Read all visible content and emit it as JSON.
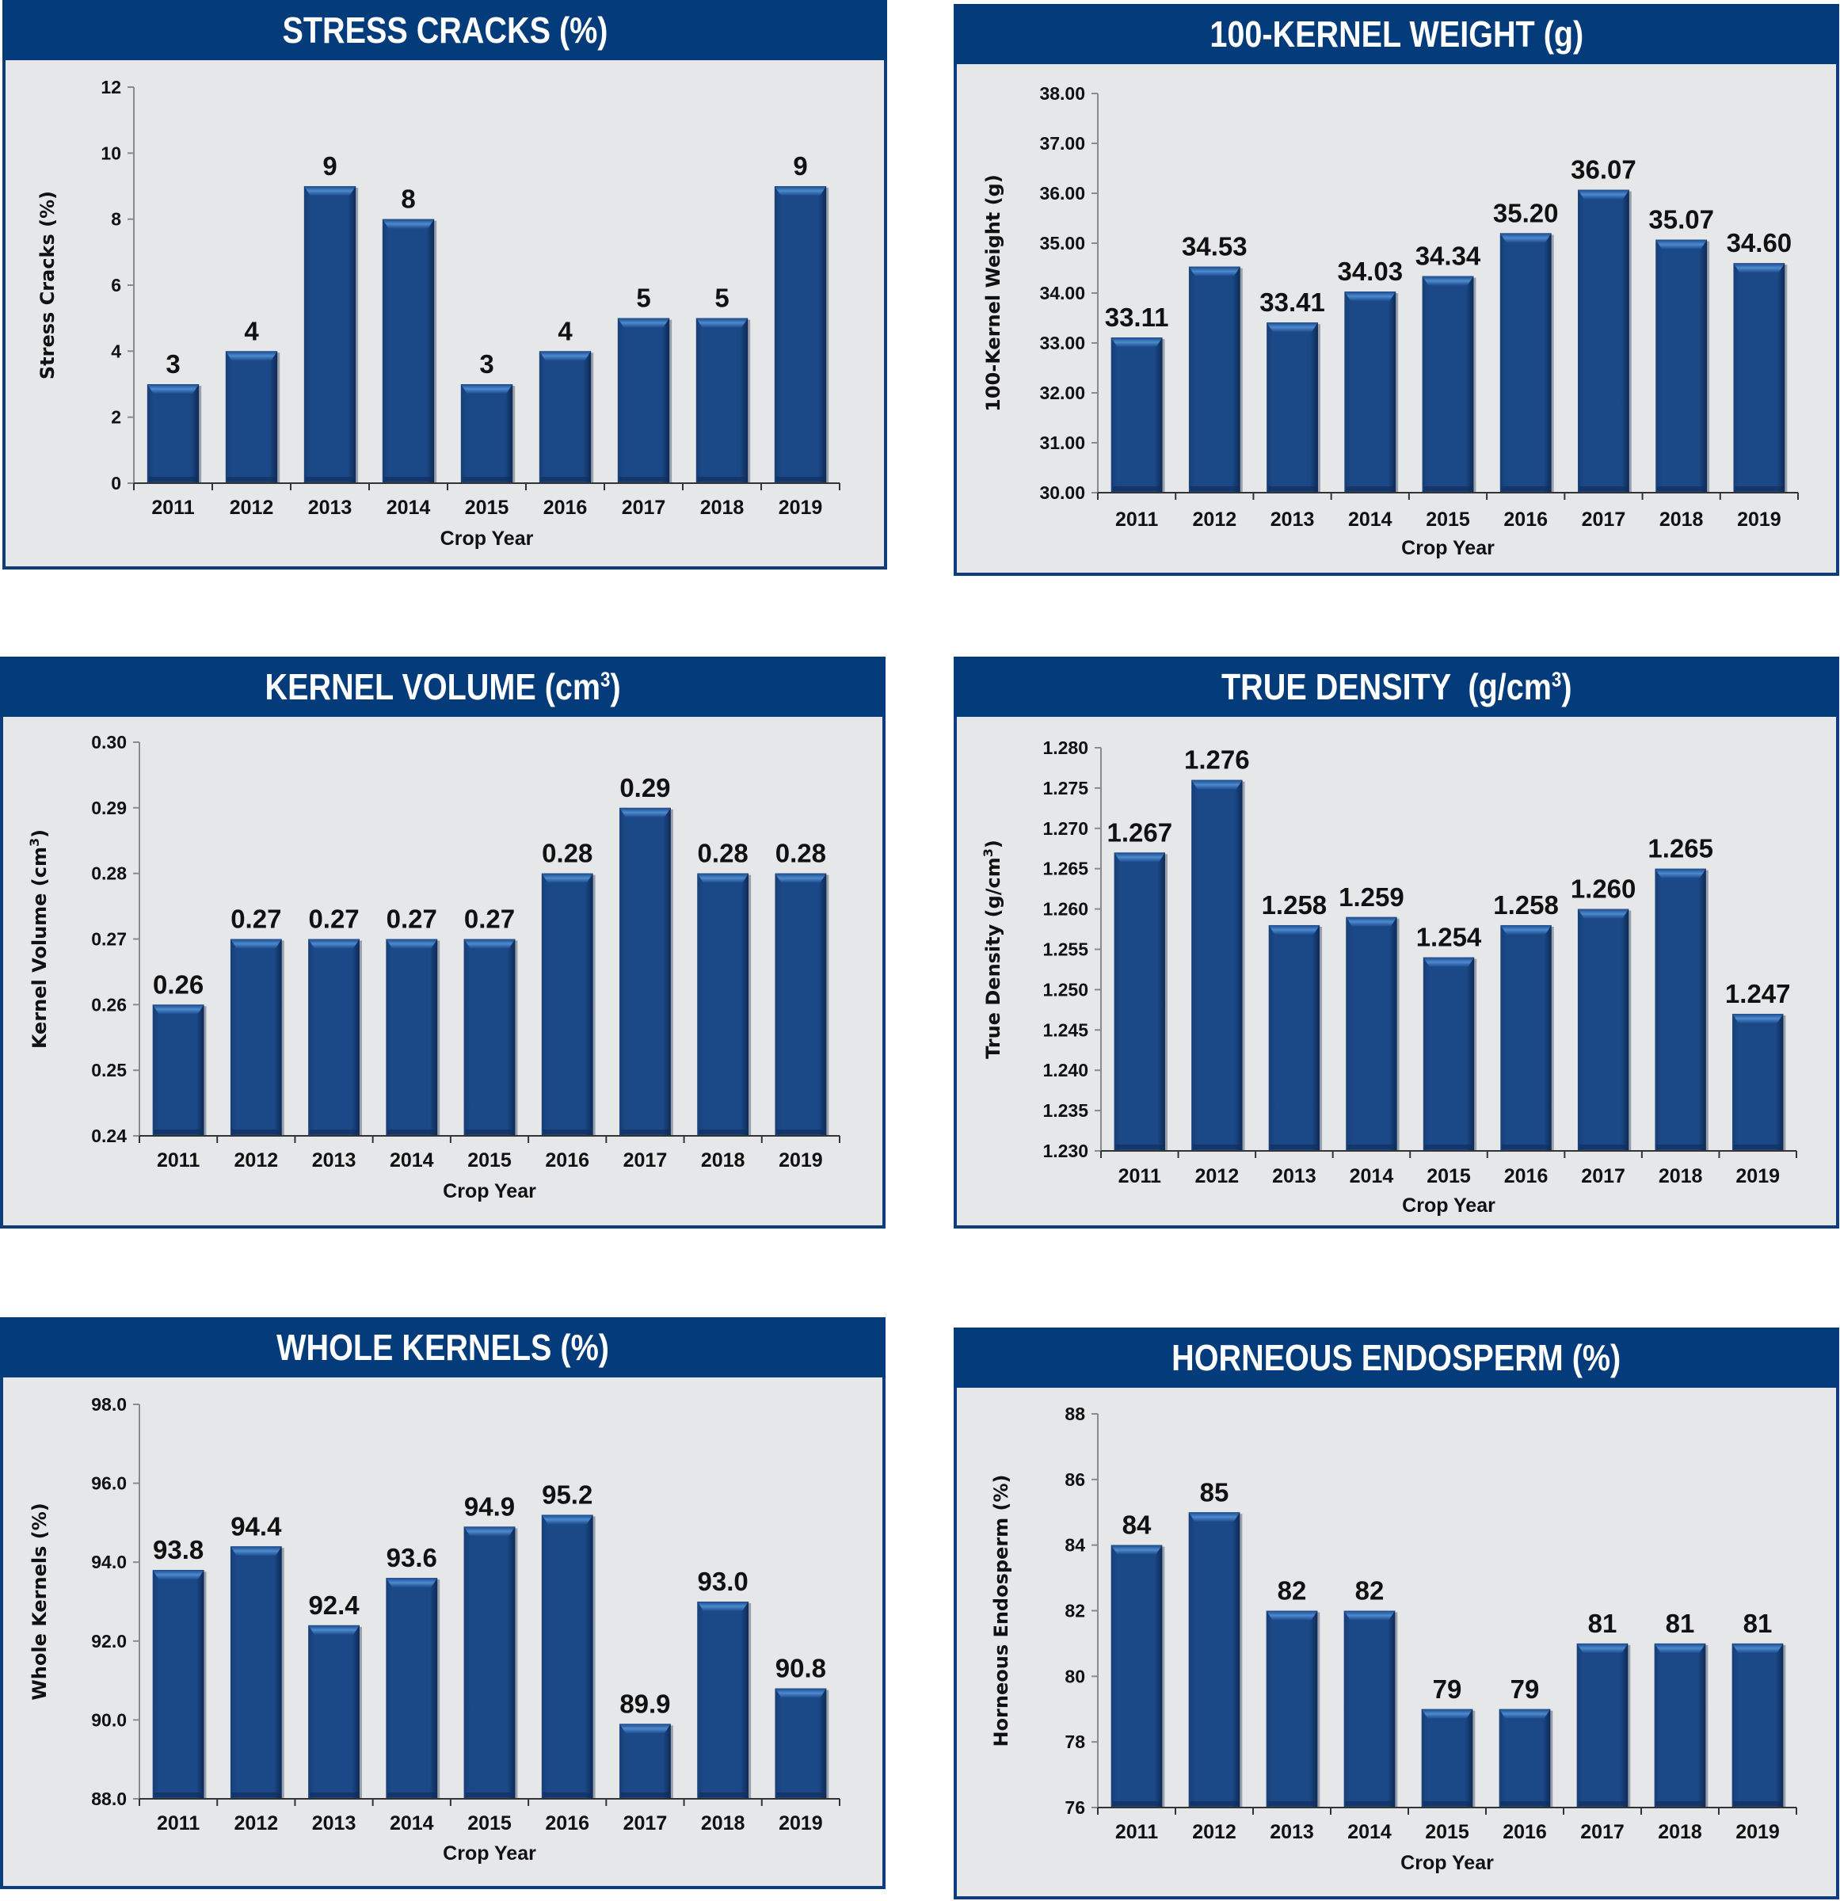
{
  "colors": {
    "header_bg": "#043b7a",
    "panel_bg": "#e6e7e9",
    "panel_border": "#0d3d7c",
    "bar_fill": "#1a4785",
    "bar_highlight": "#3f7fc6",
    "axis": "#8a8a8a"
  },
  "chart_data": [
    {
      "type": "bar",
      "title": "STRESS CRACKS (%)",
      "xlabel": "Crop Year",
      "ylabel": "Stress Cracks (%)",
      "categories": [
        "2011",
        "2012",
        "2013",
        "2014",
        "2015",
        "2016",
        "2017",
        "2018",
        "2019"
      ],
      "values": [
        3,
        4,
        9,
        8,
        3,
        4,
        5,
        5,
        9
      ],
      "value_labels": [
        "3",
        "4",
        "9",
        "8",
        "3",
        "4",
        "5",
        "5",
        "9"
      ],
      "ylim": [
        0,
        12
      ],
      "yticks": [
        "0",
        "2",
        "4",
        "6",
        "8",
        "10",
        "12"
      ],
      "ytick_values": [
        0,
        2,
        4,
        6,
        8,
        10,
        12
      ],
      "grid": false
    },
    {
      "type": "bar",
      "title": "100-KERNEL WEIGHT (g)",
      "xlabel": "Crop Year",
      "ylabel": "100-Kernel Weight (g)",
      "categories": [
        "2011",
        "2012",
        "2013",
        "2014",
        "2015",
        "2016",
        "2017",
        "2018",
        "2019"
      ],
      "values": [
        33.11,
        34.53,
        33.41,
        34.03,
        34.34,
        35.2,
        36.07,
        35.07,
        34.6
      ],
      "value_labels": [
        "33.11",
        "34.53",
        "33.41",
        "34.03",
        "34.34",
        "35.20",
        "36.07",
        "35.07",
        "34.60"
      ],
      "ylim": [
        30,
        38
      ],
      "yticks": [
        "30.00",
        "31.00",
        "32.00",
        "33.00",
        "34.00",
        "35.00",
        "36.00",
        "37.00",
        "38.00"
      ],
      "ytick_values": [
        30,
        31,
        32,
        33,
        34,
        35,
        36,
        37,
        38
      ],
      "grid": false
    },
    {
      "type": "bar",
      "title": "KERNEL VOLUME (cm",
      "title_sup": "3",
      "title_end": ")",
      "xlabel": "Crop Year",
      "ylabel": "Kernel Volume (cm",
      "ylabel_sup": "3",
      "ylabel_end": ")",
      "categories": [
        "2011",
        "2012",
        "2013",
        "2014",
        "2015",
        "2016",
        "2017",
        "2018",
        "2019"
      ],
      "values": [
        0.26,
        0.27,
        0.27,
        0.27,
        0.27,
        0.28,
        0.29,
        0.28,
        0.28
      ],
      "value_labels": [
        "0.26",
        "0.27",
        "0.27",
        "0.27",
        "0.27",
        "0.28",
        "0.29",
        "0.28",
        "0.28"
      ],
      "ylim": [
        0.24,
        0.3
      ],
      "yticks": [
        "0.24",
        "0.25",
        "0.26",
        "0.27",
        "0.28",
        "0.29",
        "0.30"
      ],
      "ytick_values": [
        0.24,
        0.25,
        0.26,
        0.27,
        0.28,
        0.29,
        0.3
      ],
      "grid": false
    },
    {
      "type": "bar",
      "title": "TRUE DENSITY  (g/cm",
      "title_sup": "3",
      "title_end": ")",
      "xlabel": "Crop Year",
      "ylabel": "True Density (g/cm",
      "ylabel_sup": "3",
      "ylabel_end": ")",
      "categories": [
        "2011",
        "2012",
        "2013",
        "2014",
        "2015",
        "2016",
        "2017",
        "2018",
        "2019"
      ],
      "values": [
        1.267,
        1.276,
        1.258,
        1.259,
        1.254,
        1.258,
        1.26,
        1.265,
        1.247
      ],
      "value_labels": [
        "1.267",
        "1.276",
        "1.258",
        "1.259",
        "1.254",
        "1.258",
        "1.260",
        "1.265",
        "1.247"
      ],
      "ylim": [
        1.23,
        1.28
      ],
      "yticks": [
        "1.230",
        "1.235",
        "1.240",
        "1.245",
        "1.250",
        "1.255",
        "1.260",
        "1.265",
        "1.270",
        "1.275",
        "1.280"
      ],
      "ytick_values": [
        1.23,
        1.235,
        1.24,
        1.245,
        1.25,
        1.255,
        1.26,
        1.265,
        1.27,
        1.275,
        1.28
      ],
      "grid": false
    },
    {
      "type": "bar",
      "title": "WHOLE KERNELS (%)",
      "xlabel": "Crop Year",
      "ylabel": "Whole Kernels (%)",
      "categories": [
        "2011",
        "2012",
        "2013",
        "2014",
        "2015",
        "2016",
        "2017",
        "2018",
        "2019"
      ],
      "values": [
        93.8,
        94.4,
        92.4,
        93.6,
        94.9,
        95.2,
        89.9,
        93.0,
        90.8
      ],
      "value_labels": [
        "93.8",
        "94.4",
        "92.4",
        "93.6",
        "94.9",
        "95.2",
        "89.9",
        "93.0",
        "90.8"
      ],
      "ylim": [
        88.0,
        98.0
      ],
      "yticks": [
        "88.0",
        "90.0",
        "92.0",
        "94.0",
        "96.0",
        "98.0"
      ],
      "ytick_values": [
        88,
        90,
        92,
        94,
        96,
        98
      ],
      "grid": false
    },
    {
      "type": "bar",
      "title": "HORNEOUS ENDOSPERM (%)",
      "xlabel": "Crop Year",
      "ylabel": "Horneous Endosperm (%)",
      "categories": [
        "2011",
        "2012",
        "2013",
        "2014",
        "2015",
        "2016",
        "2017",
        "2018",
        "2019"
      ],
      "values": [
        84,
        85,
        82,
        82,
        79,
        79,
        81,
        81,
        81
      ],
      "value_labels": [
        "84",
        "85",
        "82",
        "82",
        "79",
        "79",
        "81",
        "81",
        "81"
      ],
      "ylim": [
        76,
        88
      ],
      "yticks": [
        "76",
        "78",
        "80",
        "82",
        "84",
        "86",
        "88"
      ],
      "ytick_values": [
        76,
        78,
        80,
        82,
        84,
        86,
        88
      ],
      "grid": false
    }
  ]
}
